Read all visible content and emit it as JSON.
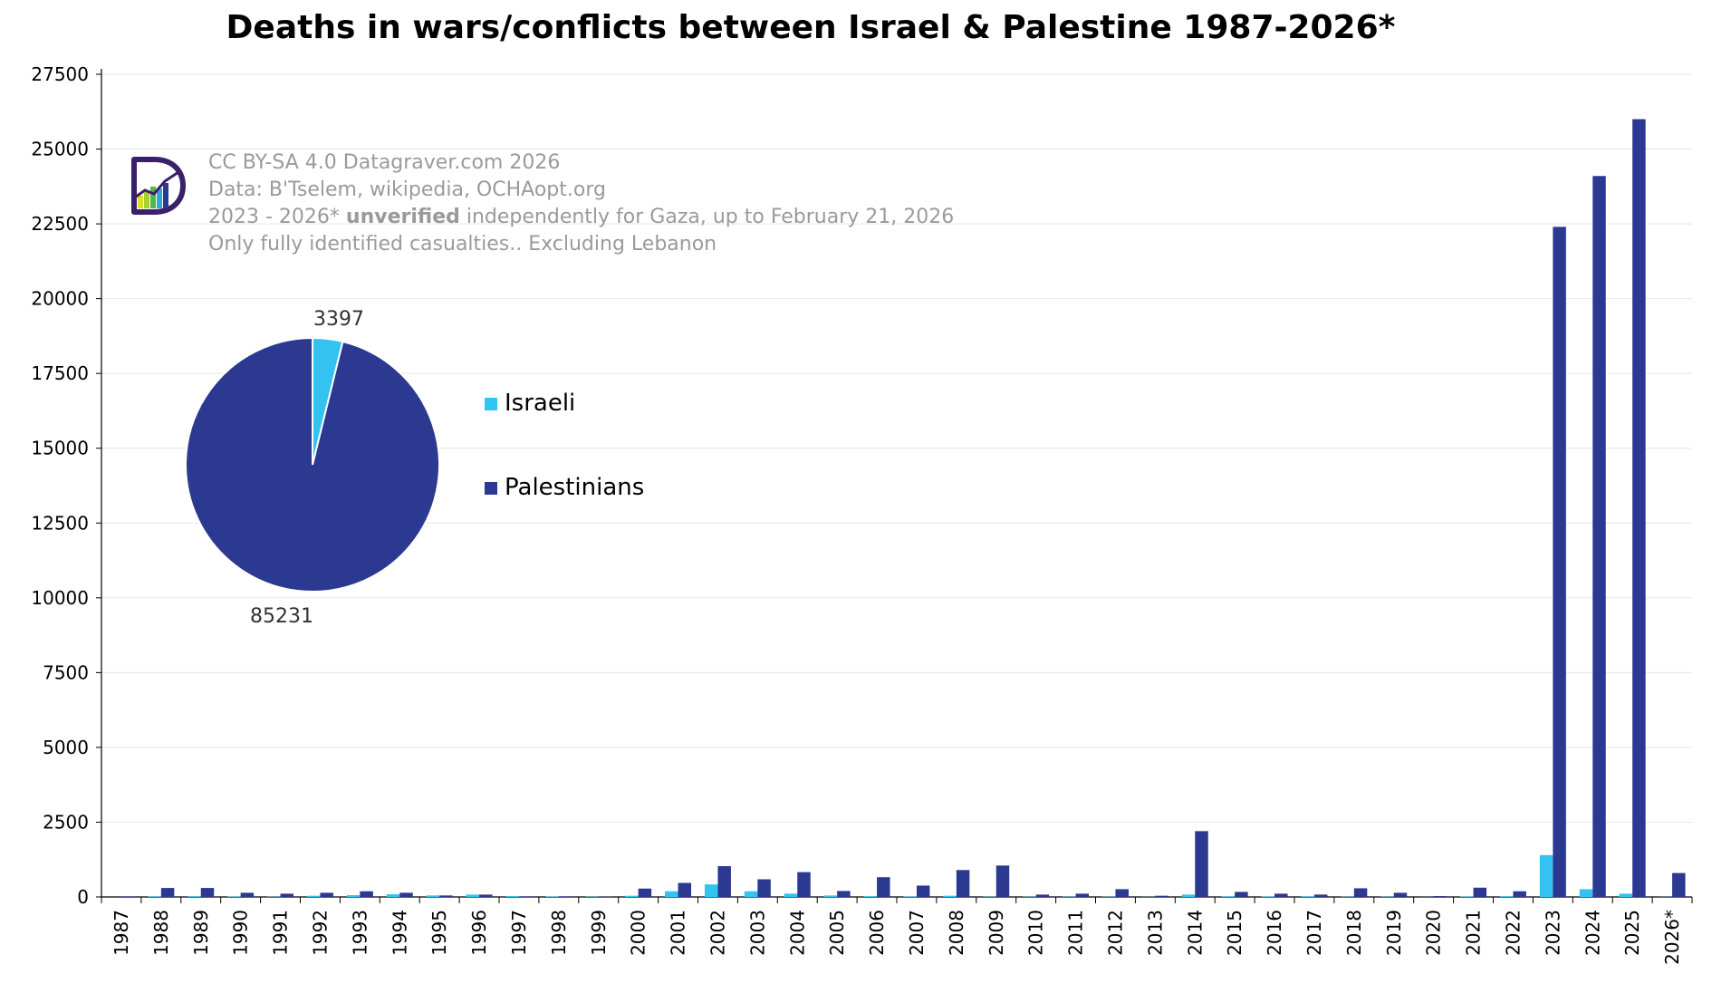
{
  "chart_data": {
    "type": "bar",
    "title": "Deaths in wars/conflicts between Israel & Palestine 1987-2026*",
    "xlabel": "",
    "ylabel": "",
    "ylim": [
      0,
      27500
    ],
    "yticks": [
      0,
      2500,
      5000,
      7500,
      10000,
      12500,
      15000,
      17500,
      20000,
      22500,
      25000,
      27500
    ],
    "grid": true,
    "categories": [
      "1987",
      "1988",
      "1989",
      "1990",
      "1991",
      "1992",
      "1993",
      "1994",
      "1995",
      "1996",
      "1997",
      "1998",
      "1999",
      "2000",
      "2001",
      "2002",
      "2003",
      "2004",
      "2005",
      "2006",
      "2007",
      "2008",
      "2009",
      "2010",
      "2011",
      "2012",
      "2013",
      "2014",
      "2015",
      "2016",
      "2017",
      "2018",
      "2019",
      "2020",
      "2021",
      "2022",
      "2023",
      "2024",
      "2025",
      "2026*"
    ],
    "series": [
      {
        "name": "Israeli",
        "color": "#33c3f0",
        "values": [
          0,
          20,
          25,
          15,
          10,
          40,
          60,
          90,
          50,
          80,
          30,
          15,
          10,
          40,
          190,
          420,
          190,
          110,
          50,
          25,
          15,
          40,
          10,
          10,
          10,
          10,
          5,
          80,
          20,
          15,
          20,
          10,
          10,
          3,
          15,
          25,
          1400,
          260,
          110,
          5
        ]
      },
      {
        "name": "Palestinians",
        "color": "#2b3990",
        "values": [
          20,
          300,
          300,
          140,
          110,
          140,
          190,
          140,
          50,
          80,
          20,
          20,
          10,
          280,
          470,
          1030,
          590,
          830,
          200,
          660,
          380,
          900,
          1050,
          80,
          110,
          260,
          40,
          2200,
          170,
          110,
          80,
          290,
          140,
          30,
          310,
          190,
          22400,
          24100,
          26000,
          800
        ]
      }
    ],
    "legend_position": "left-middle",
    "inset_pie": {
      "type": "pie",
      "labels": [
        "Israeli",
        "Palestinians"
      ],
      "values": [
        3397,
        85231
      ],
      "value_labels": [
        "3397",
        "85231"
      ],
      "colors": [
        "#33c3f0",
        "#2b3990"
      ]
    }
  },
  "notes": {
    "line1": "CC BY-SA 4.0 Datagraver.com 2026",
    "line2": "Data: B'Tselem, wikipedia, OCHAopt.org",
    "line3_pre": "2023 - 2026* ",
    "line3_bold": "unverified",
    "line3_post": " independently for Gaza, up to February 21, 2026",
    "line4": "Only fully identified casualties.. Excluding Lebanon"
  },
  "legend": {
    "israeli": "Israeli",
    "palestinians": "Palestinians"
  }
}
